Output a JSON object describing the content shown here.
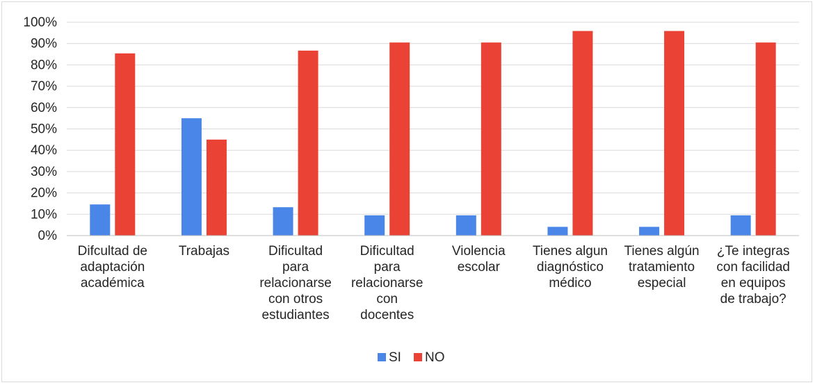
{
  "chart_data": {
    "type": "bar",
    "categories": [
      [
        "Difcultad de",
        "adaptación",
        "académica"
      ],
      [
        "Trabajas"
      ],
      [
        "Dificultad",
        "para",
        "relacionarse",
        "con otros",
        "estudiantes"
      ],
      [
        "Dificultad",
        "para",
        "relacionarse",
        "con",
        "docentes"
      ],
      [
        "Violencia",
        "escolar"
      ],
      [
        "Tienes algun",
        "diagnóstico",
        "médico"
      ],
      [
        "Tienes algún",
        "tratamiento",
        "especial"
      ],
      [
        "¿Te integras",
        "con facilidad",
        "en equipos",
        "de trabajo?"
      ]
    ],
    "series": [
      {
        "name": "SI",
        "color": "#4a86e8",
        "values": [
          14.6,
          55.0,
          13.3,
          9.5,
          9.5,
          4.1,
          4.1,
          9.5
        ]
      },
      {
        "name": "NO",
        "color": "#ea4335",
        "values": [
          85.4,
          45.0,
          86.7,
          90.5,
          90.5,
          95.9,
          95.9,
          90.5
        ]
      }
    ],
    "ylim": [
      0,
      100
    ],
    "yticks": [
      "0%",
      "10%",
      "20%",
      "30%",
      "40%",
      "50%",
      "60%",
      "70%",
      "80%",
      "90%",
      "100%"
    ],
    "grid": true,
    "legend_position": "bottom",
    "title": "",
    "xlabel": "",
    "ylabel": ""
  }
}
